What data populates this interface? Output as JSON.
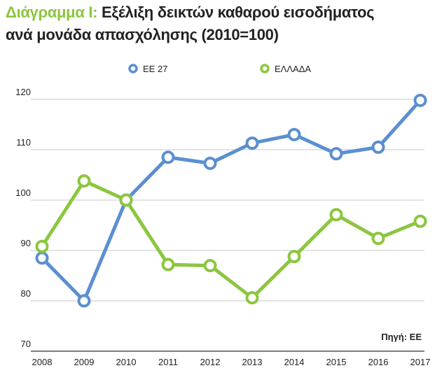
{
  "title": {
    "prefix": "Διάγραμμα Ι:",
    "line1": "Εξέλιξη δεικτών καθαρού εισοδήματος",
    "line2": "ανά μονάδα απασχόλησης (2010=100)"
  },
  "colors": {
    "accent": "#8cc63f",
    "series_ee": "#5b8fd0",
    "series_gr": "#8cc63f"
  },
  "chart_data": {
    "type": "line",
    "x": [
      "2008",
      "2009",
      "2010",
      "2011",
      "2012",
      "2013",
      "2014",
      "2015",
      "2016",
      "2017"
    ],
    "series": [
      {
        "name": "ΕΕ 27",
        "color": "#5b8fd0",
        "values": [
          88.5,
          80.0,
          100.0,
          108.5,
          107.3,
          111.3,
          113.0,
          109.2,
          110.5,
          119.8
        ]
      },
      {
        "name": "ΕΛΛΑΔΑ",
        "color": "#8cc63f",
        "values": [
          90.8,
          103.8,
          100.0,
          87.2,
          87.0,
          80.6,
          88.8,
          97.1,
          92.4,
          95.8
        ]
      }
    ],
    "yticks": [
      70,
      80,
      90,
      100,
      110,
      120
    ],
    "ylim": [
      70,
      120
    ],
    "grid": true,
    "legend": "top",
    "source": "Πηγή: ΕΕ"
  }
}
